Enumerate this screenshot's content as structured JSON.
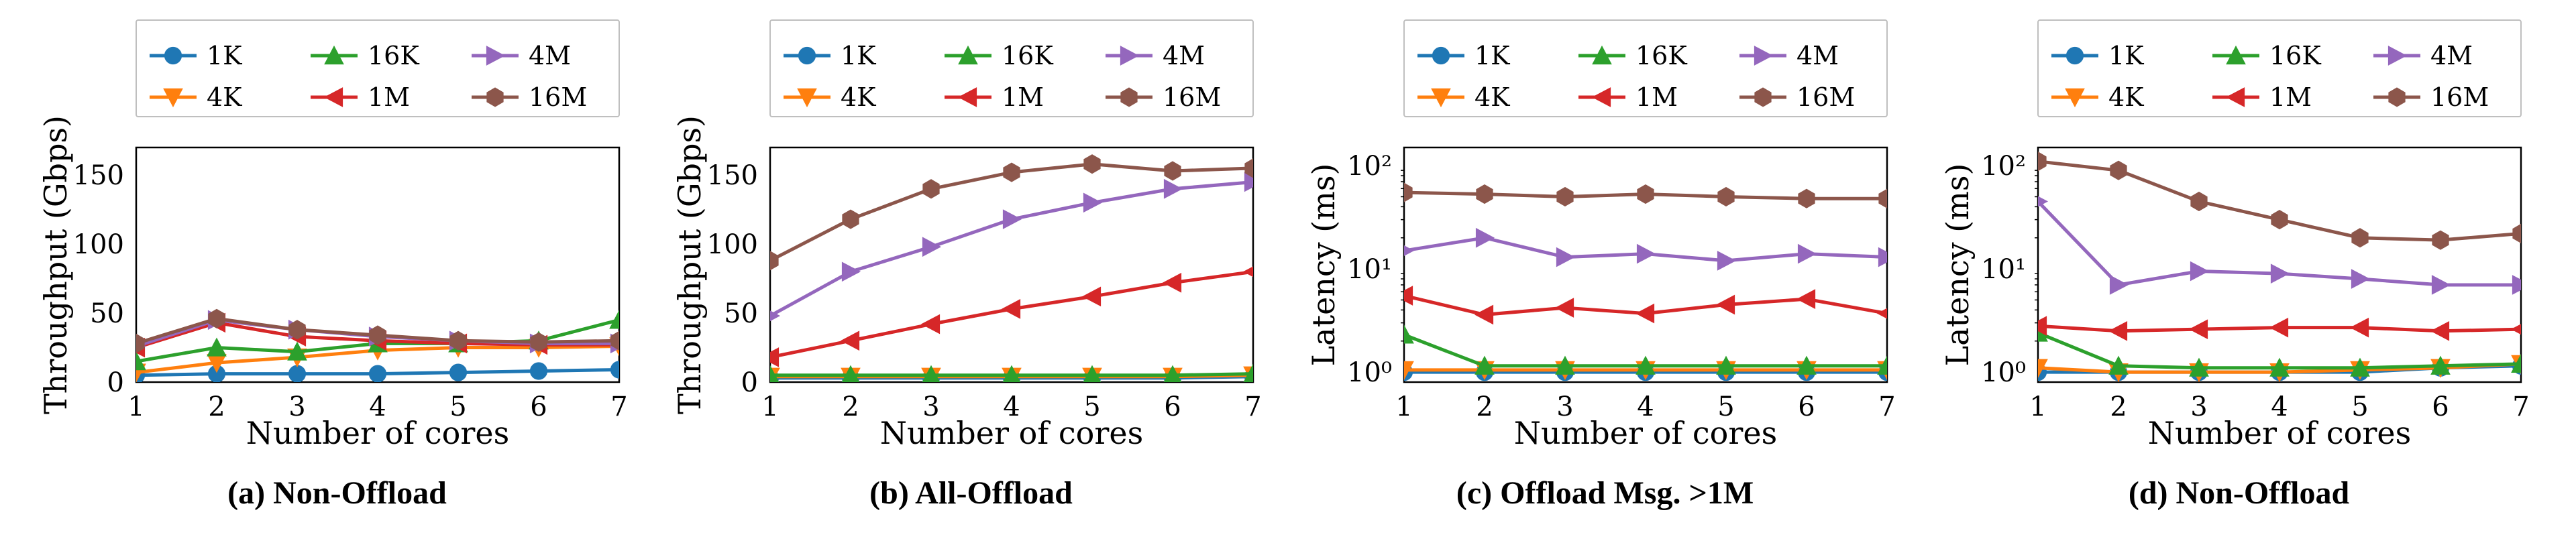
{
  "background_color": "#ffffff",
  "font_family": "Georgia, 'Times New Roman', serif",
  "series_style": {
    "keys": [
      "1K",
      "4K",
      "16K",
      "1M",
      "4M",
      "16M"
    ],
    "colors": {
      "1K": "#1f77b4",
      "4K": "#ff7f0e",
      "16K": "#2ca02c",
      "1M": "#d62728",
      "4M": "#9467bd",
      "16M": "#8c564b"
    },
    "markers": {
      "1K": "circle",
      "4K": "tri_down",
      "16K": "tri_up",
      "1M": "tri_left",
      "4M": "tri_right",
      "16M": "hexagon"
    },
    "marker_size": 14,
    "line_width": 5
  },
  "legend": {
    "ncols": 3,
    "order": [
      "1K",
      "4K",
      "16K",
      "1M",
      "4M",
      "16M"
    ],
    "box_stroke": "#bfbfbf",
    "box_fill": "#ffffff",
    "fontsize": 38
  },
  "x_axis": {
    "label": "Number of cores",
    "ticks": [
      1,
      2,
      3,
      4,
      5,
      6,
      7
    ],
    "xlim": [
      1,
      7
    ],
    "label_fontsize": 46,
    "tick_fontsize": 40
  },
  "panels": [
    {
      "id": "a",
      "caption": "(a) Non-Offload",
      "ylabel": "Throughput (Gbps)",
      "yscale": "linear",
      "ylim": [
        0,
        170
      ],
      "yticks": [
        0,
        50,
        100,
        150
      ],
      "series": {
        "1K": [
          5,
          6,
          6,
          6,
          7,
          8,
          9
        ],
        "4K": [
          7,
          14,
          18,
          23,
          25,
          25,
          26
        ],
        "16K": [
          15,
          25,
          22,
          28,
          28,
          30,
          45
        ],
        "1M": [
          25,
          43,
          33,
          30,
          28,
          27,
          27
        ],
        "4M": [
          26,
          45,
          38,
          33,
          30,
          28,
          28
        ],
        "16M": [
          28,
          46,
          38,
          34,
          30,
          29,
          30
        ]
      }
    },
    {
      "id": "b",
      "caption": "(b) All-Offload",
      "ylabel": "Throughput (Gbps)",
      "yscale": "linear",
      "ylim": [
        0,
        170
      ],
      "yticks": [
        0,
        50,
        100,
        150
      ],
      "series": {
        "1K": [
          3,
          3,
          3,
          3,
          3,
          3,
          4
        ],
        "4K": [
          4,
          4,
          4,
          4,
          4,
          4,
          5
        ],
        "16K": [
          5,
          5,
          5,
          5,
          5,
          5,
          6
        ],
        "1M": [
          18,
          30,
          42,
          53,
          62,
          72,
          80
        ],
        "4M": [
          48,
          80,
          98,
          118,
          130,
          140,
          145
        ],
        "16M": [
          88,
          118,
          140,
          152,
          158,
          153,
          155
        ]
      }
    },
    {
      "id": "c",
      "caption": "(c) Offload Msg. >1M",
      "ylabel": "Latency (ms)",
      "yscale": "log",
      "ylim": [
        0.8,
        150
      ],
      "yticks": [
        1,
        10,
        100
      ],
      "ytick_labels": [
        "10⁰",
        "10¹",
        "10²"
      ],
      "series": {
        "1K": [
          1.0,
          1.0,
          1.0,
          1.0,
          1.0,
          1.0,
          1.0
        ],
        "4K": [
          1.05,
          1.05,
          1.05,
          1.05,
          1.05,
          1.05,
          1.05
        ],
        "16K": [
          2.3,
          1.15,
          1.15,
          1.15,
          1.15,
          1.15,
          1.15
        ],
        "1M": [
          5.5,
          3.6,
          4.2,
          3.7,
          4.5,
          5.1,
          3.7
        ],
        "4M": [
          15,
          20,
          13,
          14,
          12,
          14,
          13
        ],
        "16M": [
          55,
          53,
          50,
          53,
          50,
          48,
          48
        ]
      }
    },
    {
      "id": "d",
      "caption": "(d) Non-Offload",
      "ylabel": "Latency (ms)",
      "yscale": "log",
      "ylim": [
        0.8,
        150
      ],
      "yticks": [
        1,
        10,
        100
      ],
      "ytick_labels": [
        "10⁰",
        "10¹",
        "10²"
      ],
      "series": {
        "1K": [
          1.0,
          1.0,
          1.0,
          1.0,
          1.0,
          1.1,
          1.15
        ],
        "4K": [
          1.1,
          1.0,
          1.0,
          1.0,
          1.05,
          1.1,
          1.2
        ],
        "16K": [
          2.4,
          1.15,
          1.1,
          1.1,
          1.1,
          1.15,
          1.2
        ],
        "1M": [
          2.8,
          2.5,
          2.6,
          2.7,
          2.7,
          2.5,
          2.6
        ],
        "4M": [
          45,
          7,
          9.5,
          9,
          8,
          7,
          7
        ],
        "16M": [
          110,
          90,
          45,
          30,
          20,
          19,
          22
        ]
      }
    }
  ]
}
